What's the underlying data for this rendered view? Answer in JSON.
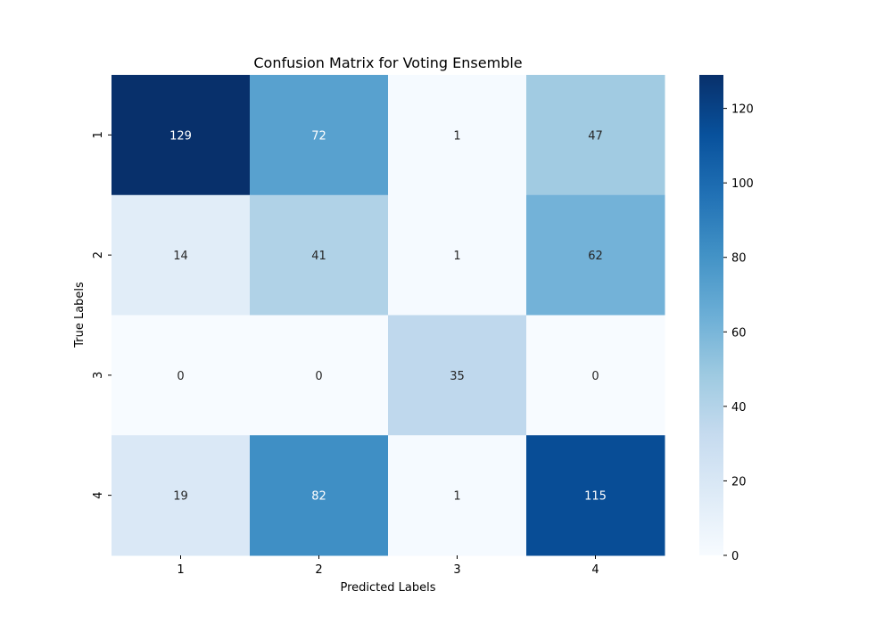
{
  "chart_data": {
    "type": "heatmap",
    "title": "Confusion Matrix for Voting Ensemble",
    "xlabel": "Predicted Labels",
    "ylabel": "True Labels",
    "x_categories": [
      "1",
      "2",
      "3",
      "4"
    ],
    "y_categories": [
      "1",
      "2",
      "3",
      "4"
    ],
    "values": [
      [
        129,
        72,
        1,
        47
      ],
      [
        14,
        41,
        1,
        62
      ],
      [
        0,
        0,
        35,
        0
      ],
      [
        19,
        82,
        1,
        115
      ]
    ],
    "colormap": "Blues",
    "colorbar": {
      "min": 0,
      "max": 129,
      "ticks": [
        0,
        20,
        40,
        60,
        80,
        100,
        120
      ]
    }
  }
}
